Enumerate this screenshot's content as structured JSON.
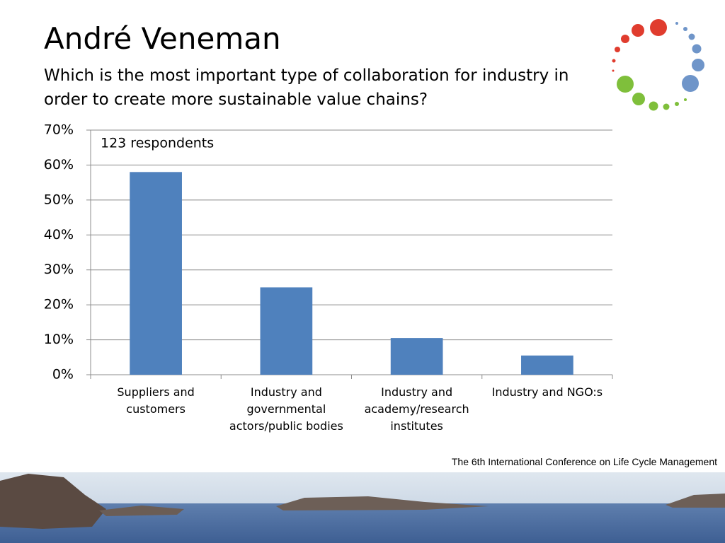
{
  "chart_data": {
    "type": "bar",
    "title": "André Veneman",
    "subtitle": "Which is the most important type of collaboration for industry in order to create more sustainable value chains?",
    "annotation": "123 respondents",
    "footer": "The 6th International Conference on Life Cycle Management",
    "categories": [
      "Suppliers and customers",
      "Industry and governmental actors/public bodies",
      "Industry and academy/research institutes",
      "Industry and NGO:s"
    ],
    "values": [
      58,
      25,
      10.5,
      5.5
    ],
    "color": "#4f81bd",
    "ylim": [
      0,
      70
    ],
    "yticks": [
      {
        "value": 0,
        "label": "0%"
      },
      {
        "value": 10,
        "label": "10%"
      },
      {
        "value": 20,
        "label": "20%"
      },
      {
        "value": 30,
        "label": "30%"
      },
      {
        "value": 40,
        "label": "40%"
      },
      {
        "value": 50,
        "label": "50%"
      },
      {
        "value": 60,
        "label": "60%"
      },
      {
        "value": 70,
        "label": "70%"
      }
    ],
    "grid": true
  }
}
